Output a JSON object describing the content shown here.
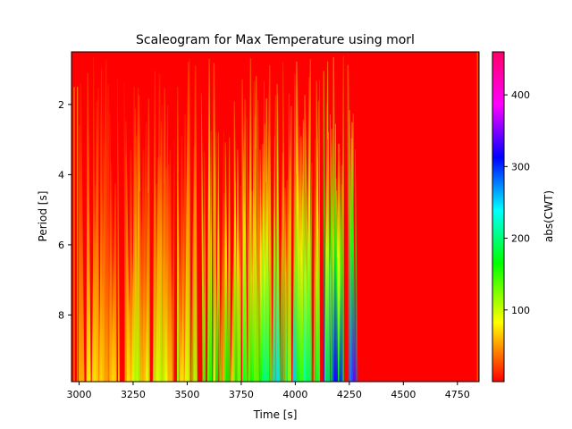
{
  "chart_data": {
    "type": "heatmap",
    "title": "Scaleogram for Max Temperature using morl",
    "xlabel": "Time [s]",
    "ylabel": "Period [s]",
    "xlim": [
      2965,
      4850
    ],
    "ylim": [
      9.9,
      0.5
    ],
    "xticks": [
      3000,
      3250,
      3500,
      3750,
      4000,
      4250,
      4500,
      4750
    ],
    "yticks": [
      2,
      4,
      6,
      8
    ],
    "active_time_range": [
      2990,
      4300
    ],
    "colormap": "gist_rainbow_r",
    "colorbar": {
      "label": "abs(CWT)",
      "range": [
        0,
        460
      ],
      "ticks": [
        100,
        200,
        300,
        400
      ]
    },
    "intensity_summary": [
      {
        "time_range": [
          2965,
          3250
        ],
        "max_abs_cwt": 90
      },
      {
        "time_range": [
          3250,
          3550
        ],
        "max_abs_cwt": 120
      },
      {
        "time_range": [
          3550,
          3850
        ],
        "max_abs_cwt": 200
      },
      {
        "time_range": [
          3850,
          4100
        ],
        "max_abs_cwt": 260
      },
      {
        "time_range": [
          4100,
          4300
        ],
        "max_abs_cwt": 350
      },
      {
        "time_range": [
          4300,
          4850
        ],
        "max_abs_cwt": 20
      }
    ]
  }
}
